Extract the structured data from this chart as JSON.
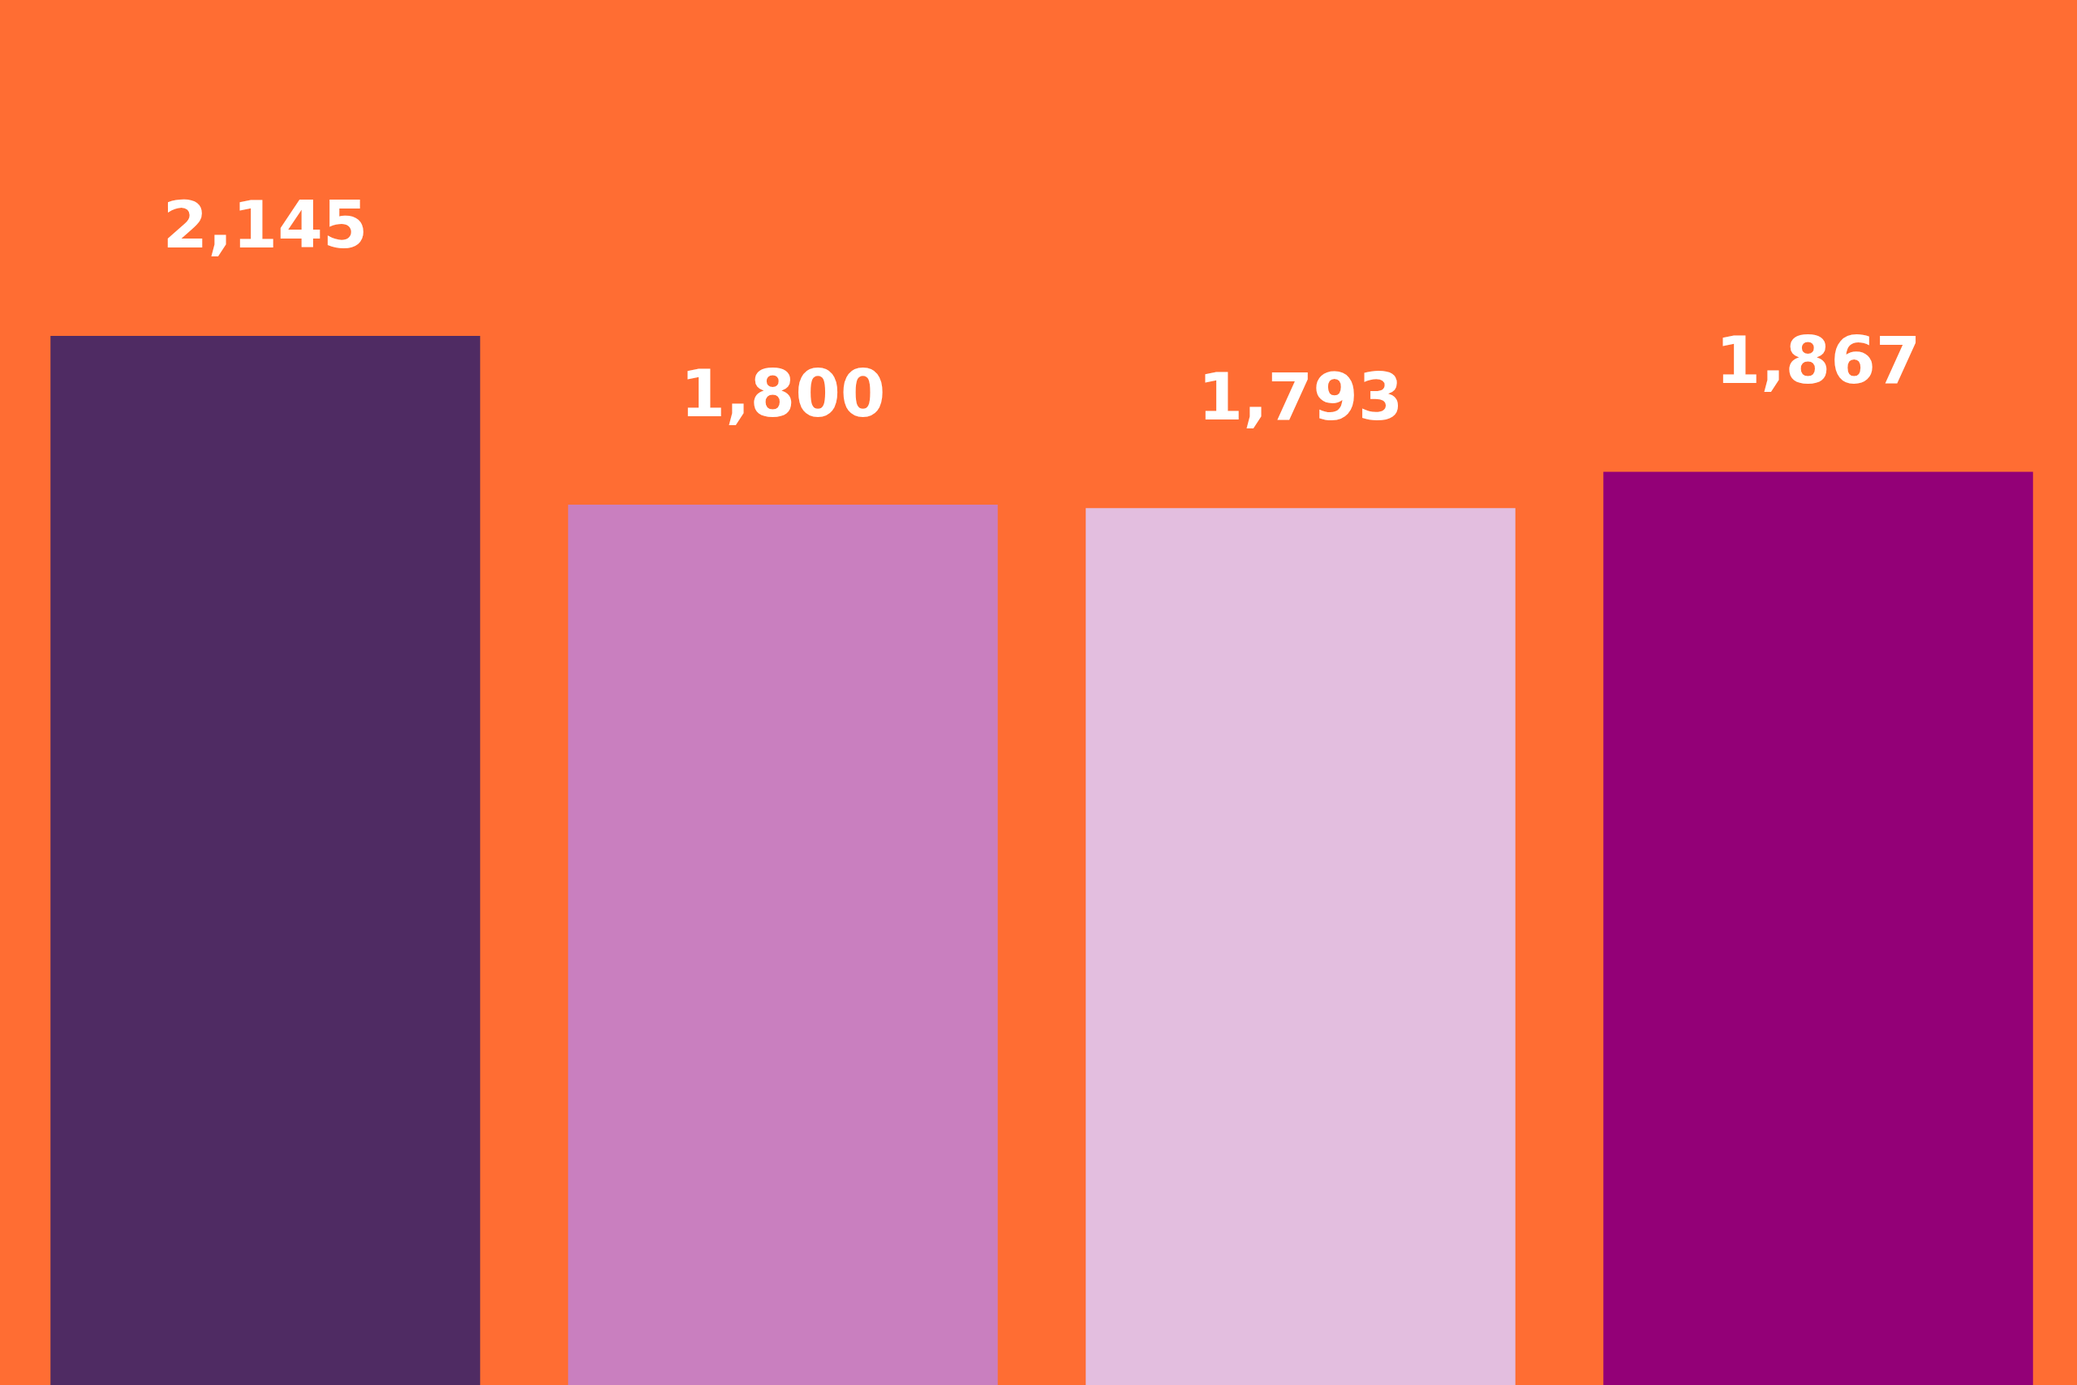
{
  "chart_data": {
    "type": "bar",
    "categories": [
      null,
      null,
      null,
      null
    ],
    "values": [
      2145,
      1800,
      1793,
      1867
    ],
    "value_labels": [
      "2,145",
      "1,800",
      "1,793",
      "1,867"
    ],
    "colors": [
      "#4f2b63",
      "#c97fbf",
      "#e3bedf",
      "#930077"
    ],
    "relative": false
  }
}
